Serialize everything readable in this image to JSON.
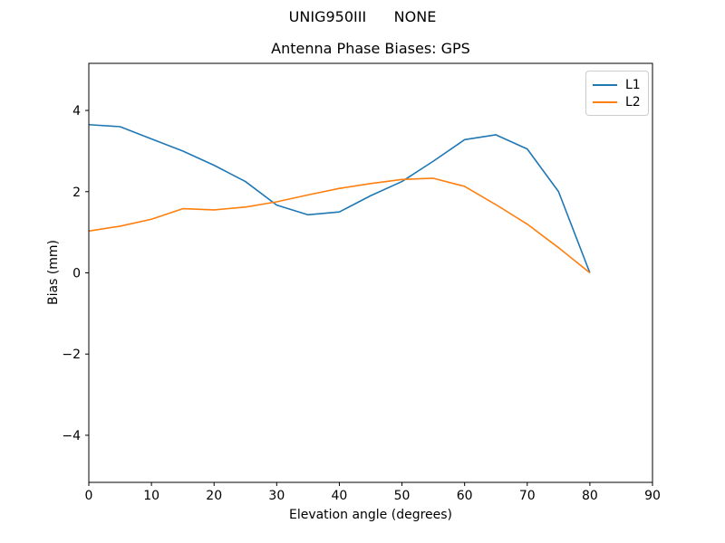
{
  "figure": {
    "suptitle": "UNIG950III      NONE",
    "background_color": "#ffffff",
    "text_color": "#000000",
    "spine_color": "#000000"
  },
  "chart_data": {
    "type": "line",
    "title": "Antenna Phase Biases: GPS",
    "xlabel": "Elevation angle (degrees)",
    "ylabel": "Bias (mm)",
    "xlim": [
      0,
      90
    ],
    "ylim": [
      -5.16,
      5.16
    ],
    "xticks": [
      0,
      10,
      20,
      30,
      40,
      50,
      60,
      70,
      80,
      90
    ],
    "yticks": [
      -4,
      -2,
      0,
      2,
      4
    ],
    "grid": false,
    "legend_position": "upper right",
    "x": [
      0,
      5,
      10,
      15,
      20,
      25,
      30,
      35,
      40,
      45,
      50,
      55,
      60,
      65,
      70,
      75,
      80
    ],
    "series": [
      {
        "name": "L1",
        "color": "#1f77b4",
        "values": [
          3.65,
          3.6,
          3.3,
          3.0,
          2.65,
          2.25,
          1.67,
          1.43,
          1.5,
          1.9,
          2.25,
          2.75,
          3.28,
          3.4,
          3.05,
          2.0,
          0.0
        ]
      },
      {
        "name": "L2",
        "color": "#ff7f0e",
        "values": [
          1.03,
          1.15,
          1.32,
          1.58,
          1.55,
          1.62,
          1.75,
          1.92,
          2.08,
          2.2,
          2.3,
          2.33,
          2.13,
          1.68,
          1.2,
          0.62,
          0.0
        ]
      }
    ]
  }
}
